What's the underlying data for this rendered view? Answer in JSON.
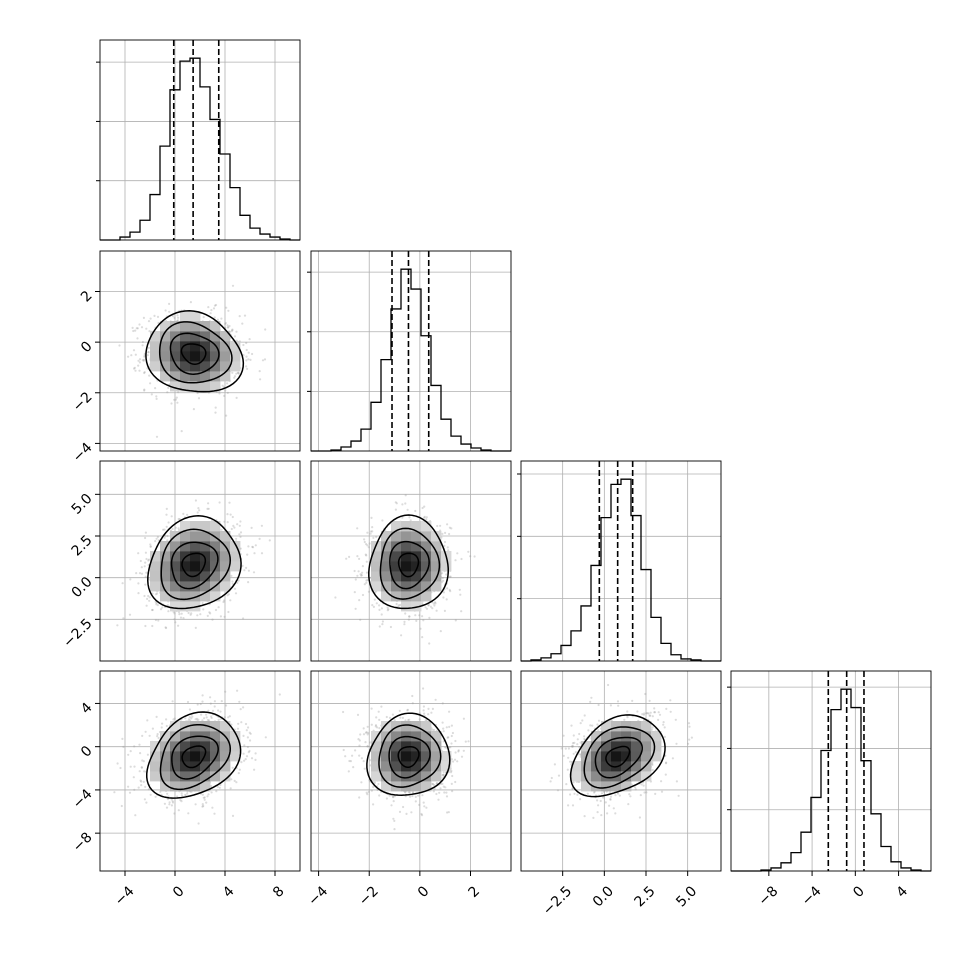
{
  "chart_data": {
    "type": "corner",
    "title": "",
    "variables": [
      {
        "index": 0,
        "range": [
          -6,
          10
        ],
        "ticks": [
          -4,
          0,
          4,
          8
        ],
        "tick_labels": [
          "−4",
          "0",
          "4",
          "8"
        ],
        "quantiles": [
          -0.1,
          1.45,
          3.5
        ],
        "hist_bins": [
          {
            "x0": -6.0,
            "x1": -5.2,
            "count": 0
          },
          {
            "x0": -5.2,
            "x1": -4.4,
            "count": 0
          },
          {
            "x0": -4.4,
            "x1": -3.6,
            "count": 3
          },
          {
            "x0": -3.6,
            "x1": -2.8,
            "count": 8
          },
          {
            "x0": -2.8,
            "x1": -2.0,
            "count": 20
          },
          {
            "x0": -2.0,
            "x1": -1.2,
            "count": 46
          },
          {
            "x0": -1.2,
            "x1": -0.4,
            "count": 95
          },
          {
            "x0": -0.4,
            "x1": 0.4,
            "count": 152
          },
          {
            "x0": 0.4,
            "x1": 1.2,
            "count": 181
          },
          {
            "x0": 1.2,
            "x1": 2.0,
            "count": 184
          },
          {
            "x0": 2.0,
            "x1": 2.8,
            "count": 155
          },
          {
            "x0": 2.8,
            "x1": 3.6,
            "count": 122
          },
          {
            "x0": 3.6,
            "x1": 4.4,
            "count": 87
          },
          {
            "x0": 4.4,
            "x1": 5.2,
            "count": 53
          },
          {
            "x0": 5.2,
            "x1": 6.0,
            "count": 25
          },
          {
            "x0": 6.0,
            "x1": 6.8,
            "count": 12
          },
          {
            "x0": 6.8,
            "x1": 7.6,
            "count": 6
          },
          {
            "x0": 7.6,
            "x1": 8.4,
            "count": 3
          },
          {
            "x0": 8.4,
            "x1": 9.2,
            "count": 1
          },
          {
            "x0": 9.2,
            "x1": 10.0,
            "count": 0
          }
        ]
      },
      {
        "index": 1,
        "range": [
          -4.3,
          3.6
        ],
        "ticks": [
          -4,
          -2,
          0,
          2
        ],
        "tick_labels": [
          "−4",
          "−2",
          "0",
          "2"
        ],
        "quantiles": [
          -1.1,
          -0.45,
          0.35
        ],
        "hist_bins": [
          {
            "x0": -4.3,
            "x1": -3.905,
            "count": 0
          },
          {
            "x0": -3.905,
            "x1": -3.51,
            "count": 0
          },
          {
            "x0": -3.51,
            "x1": -3.115,
            "count": 1
          },
          {
            "x0": -3.115,
            "x1": -2.72,
            "count": 4
          },
          {
            "x0": -2.72,
            "x1": -2.325,
            "count": 10
          },
          {
            "x0": -2.325,
            "x1": -1.93,
            "count": 22
          },
          {
            "x0": -1.93,
            "x1": -1.535,
            "count": 49
          },
          {
            "x0": -1.535,
            "x1": -1.14,
            "count": 92
          },
          {
            "x0": -1.14,
            "x1": -0.745,
            "count": 143
          },
          {
            "x0": -0.745,
            "x1": -0.35,
            "count": 183
          },
          {
            "x0": -0.35,
            "x1": 0.045,
            "count": 163
          },
          {
            "x0": 0.045,
            "x1": 0.44,
            "count": 116
          },
          {
            "x0": 0.44,
            "x1": 0.835,
            "count": 66
          },
          {
            "x0": 0.835,
            "x1": 1.23,
            "count": 32
          },
          {
            "x0": 1.23,
            "x1": 1.625,
            "count": 15
          },
          {
            "x0": 1.625,
            "x1": 2.02,
            "count": 7
          },
          {
            "x0": 2.02,
            "x1": 2.415,
            "count": 3
          },
          {
            "x0": 2.415,
            "x1": 2.81,
            "count": 1
          },
          {
            "x0": 2.81,
            "x1": 3.205,
            "count": 0
          },
          {
            "x0": 3.205,
            "x1": 3.6,
            "count": 0
          }
        ]
      },
      {
        "index": 2,
        "range": [
          -5.0,
          7.0
        ],
        "ticks": [
          -2.5,
          0.0,
          2.5,
          5.0
        ],
        "tick_labels": [
          "−2.5",
          "0.0",
          "2.5",
          "5.0"
        ],
        "quantiles": [
          -0.3,
          0.8,
          1.7
        ],
        "hist_bins": [
          {
            "x0": -5.0,
            "x1": -4.4,
            "count": 0
          },
          {
            "x0": -4.4,
            "x1": -3.8,
            "count": 1
          },
          {
            "x0": -3.8,
            "x1": -3.2,
            "count": 3
          },
          {
            "x0": -3.2,
            "x1": -2.6,
            "count": 7
          },
          {
            "x0": -2.6,
            "x1": -2.0,
            "count": 15
          },
          {
            "x0": -2.0,
            "x1": -1.4,
            "count": 29
          },
          {
            "x0": -1.4,
            "x1": -0.8,
            "count": 53
          },
          {
            "x0": -0.8,
            "x1": -0.2,
            "count": 92
          },
          {
            "x0": -0.2,
            "x1": 0.4,
            "count": 138
          },
          {
            "x0": 0.4,
            "x1": 1.0,
            "count": 170
          },
          {
            "x0": 1.0,
            "x1": 1.6,
            "count": 175
          },
          {
            "x0": 1.6,
            "x1": 2.2,
            "count": 140
          },
          {
            "x0": 2.2,
            "x1": 2.8,
            "count": 88
          },
          {
            "x0": 2.8,
            "x1": 3.4,
            "count": 42
          },
          {
            "x0": 3.4,
            "x1": 4.0,
            "count": 17
          },
          {
            "x0": 4.0,
            "x1": 4.6,
            "count": 6
          },
          {
            "x0": 4.6,
            "x1": 5.2,
            "count": 2
          },
          {
            "x0": 5.2,
            "x1": 5.8,
            "count": 1
          },
          {
            "x0": 5.8,
            "x1": 6.4,
            "count": 0
          },
          {
            "x0": 6.4,
            "x1": 7.0,
            "count": 0
          }
        ]
      },
      {
        "index": 3,
        "range": [
          -11.5,
          7.0
        ],
        "ticks": [
          -8,
          -4,
          0,
          4
        ],
        "tick_labels": [
          "−8",
          "−4",
          "0",
          "4"
        ],
        "quantiles": [
          -2.5,
          -0.8,
          0.8
        ],
        "hist_bins": [
          {
            "x0": -11.5,
            "x1": -10.575,
            "count": 0
          },
          {
            "x0": -10.575,
            "x1": -9.65,
            "count": 0
          },
          {
            "x0": -9.65,
            "x1": -8.725,
            "count": 0
          },
          {
            "x0": -8.725,
            "x1": -7.8,
            "count": 1
          },
          {
            "x0": -7.8,
            "x1": -6.875,
            "count": 3
          },
          {
            "x0": -6.875,
            "x1": -5.95,
            "count": 8
          },
          {
            "x0": -5.95,
            "x1": -5.025,
            "count": 18
          },
          {
            "x0": -5.025,
            "x1": -4.1,
            "count": 38
          },
          {
            "x0": -4.1,
            "x1": -3.175,
            "count": 72
          },
          {
            "x0": -3.175,
            "x1": -2.25,
            "count": 118
          },
          {
            "x0": -2.25,
            "x1": -1.325,
            "count": 158
          },
          {
            "x0": -1.325,
            "x1": -0.4,
            "count": 178
          },
          {
            "x0": -0.4,
            "x1": 0.525,
            "count": 160
          },
          {
            "x0": 0.525,
            "x1": 1.45,
            "count": 108
          },
          {
            "x0": 1.45,
            "x1": 2.375,
            "count": 56
          },
          {
            "x0": 2.375,
            "x1": 3.3,
            "count": 24
          },
          {
            "x0": 3.3,
            "x1": 4.225,
            "count": 9
          },
          {
            "x0": 4.225,
            "x1": 5.15,
            "count": 3
          },
          {
            "x0": 5.15,
            "x1": 6.075,
            "count": 1
          },
          {
            "x0": 6.075,
            "x1": 7.0,
            "count": 0
          }
        ]
      }
    ],
    "pairs": [
      {
        "x": 0,
        "y": 1,
        "mean": [
          1.5,
          -0.45
        ],
        "std": [
          1.9,
          0.8
        ],
        "rho": -0.05
      },
      {
        "x": 0,
        "y": 2,
        "mean": [
          1.5,
          0.8
        ],
        "std": [
          1.9,
          1.35
        ],
        "rho": 0.2
      },
      {
        "x": 0,
        "y": 3,
        "mean": [
          1.5,
          -0.9
        ],
        "std": [
          1.9,
          1.9
        ],
        "rho": 0.25
      },
      {
        "x": 1,
        "y": 2,
        "mean": [
          -0.45,
          0.8
        ],
        "std": [
          0.8,
          1.35
        ],
        "rho": 0.0
      },
      {
        "x": 1,
        "y": 3,
        "mean": [
          -0.45,
          -0.9
        ],
        "std": [
          0.8,
          1.9
        ],
        "rho": 0.0
      },
      {
        "x": 2,
        "y": 3,
        "mean": [
          0.8,
          -0.9
        ],
        "std": [
          1.35,
          1.9
        ],
        "rho": 0.3
      }
    ],
    "grid": true,
    "colors": {
      "line": "#000000",
      "grid": "#b0b0b0",
      "scatter": "#9a9a9a",
      "density_low": "#ffffff",
      "density_high": "#000000"
    }
  }
}
